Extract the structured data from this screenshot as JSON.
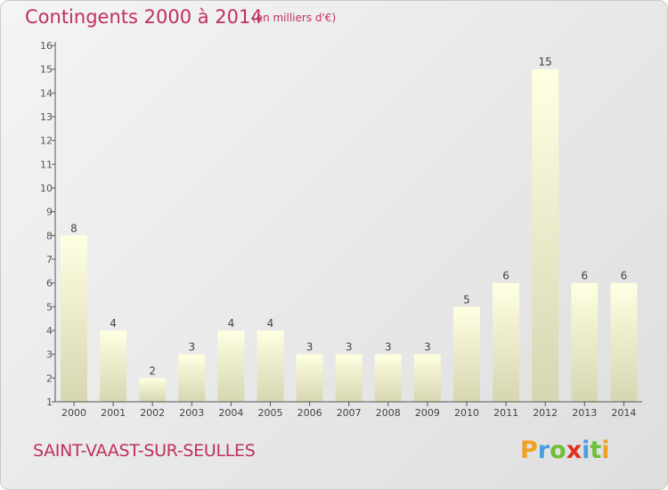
{
  "chart_data": {
    "type": "bar",
    "title": "Contingents 2000 à 2014",
    "subtitle": "(en milliers d'€)",
    "categories": [
      "2000",
      "2001",
      "2002",
      "2003",
      "2004",
      "2005",
      "2006",
      "2007",
      "2008",
      "2009",
      "2010",
      "2011",
      "2012",
      "2013",
      "2014"
    ],
    "values": [
      8,
      4,
      2,
      3,
      4,
      4,
      3,
      3,
      3,
      3,
      5,
      6,
      15,
      6,
      6
    ],
    "ylim": [
      1,
      16
    ],
    "yticks": [
      1,
      2,
      3,
      4,
      5,
      6,
      7,
      8,
      9,
      10,
      11,
      12,
      13,
      14,
      15,
      16
    ],
    "grid": false,
    "legend": "none"
  },
  "footer": {
    "commune": "SAINT-VAAST-SUR-SEULLES",
    "logo_text": "Proxiti"
  },
  "colors": {
    "title": "#c0305a",
    "bar_light": "#ffffe0",
    "bar_dark": "#d4d4b0",
    "axis": "#555555",
    "logo_p": "#f0a020",
    "logo_r": "#4a9ee0",
    "logo_o": "#6cbf3a",
    "logo_x": "#e03020",
    "logo_i": "#4a9ee0"
  }
}
